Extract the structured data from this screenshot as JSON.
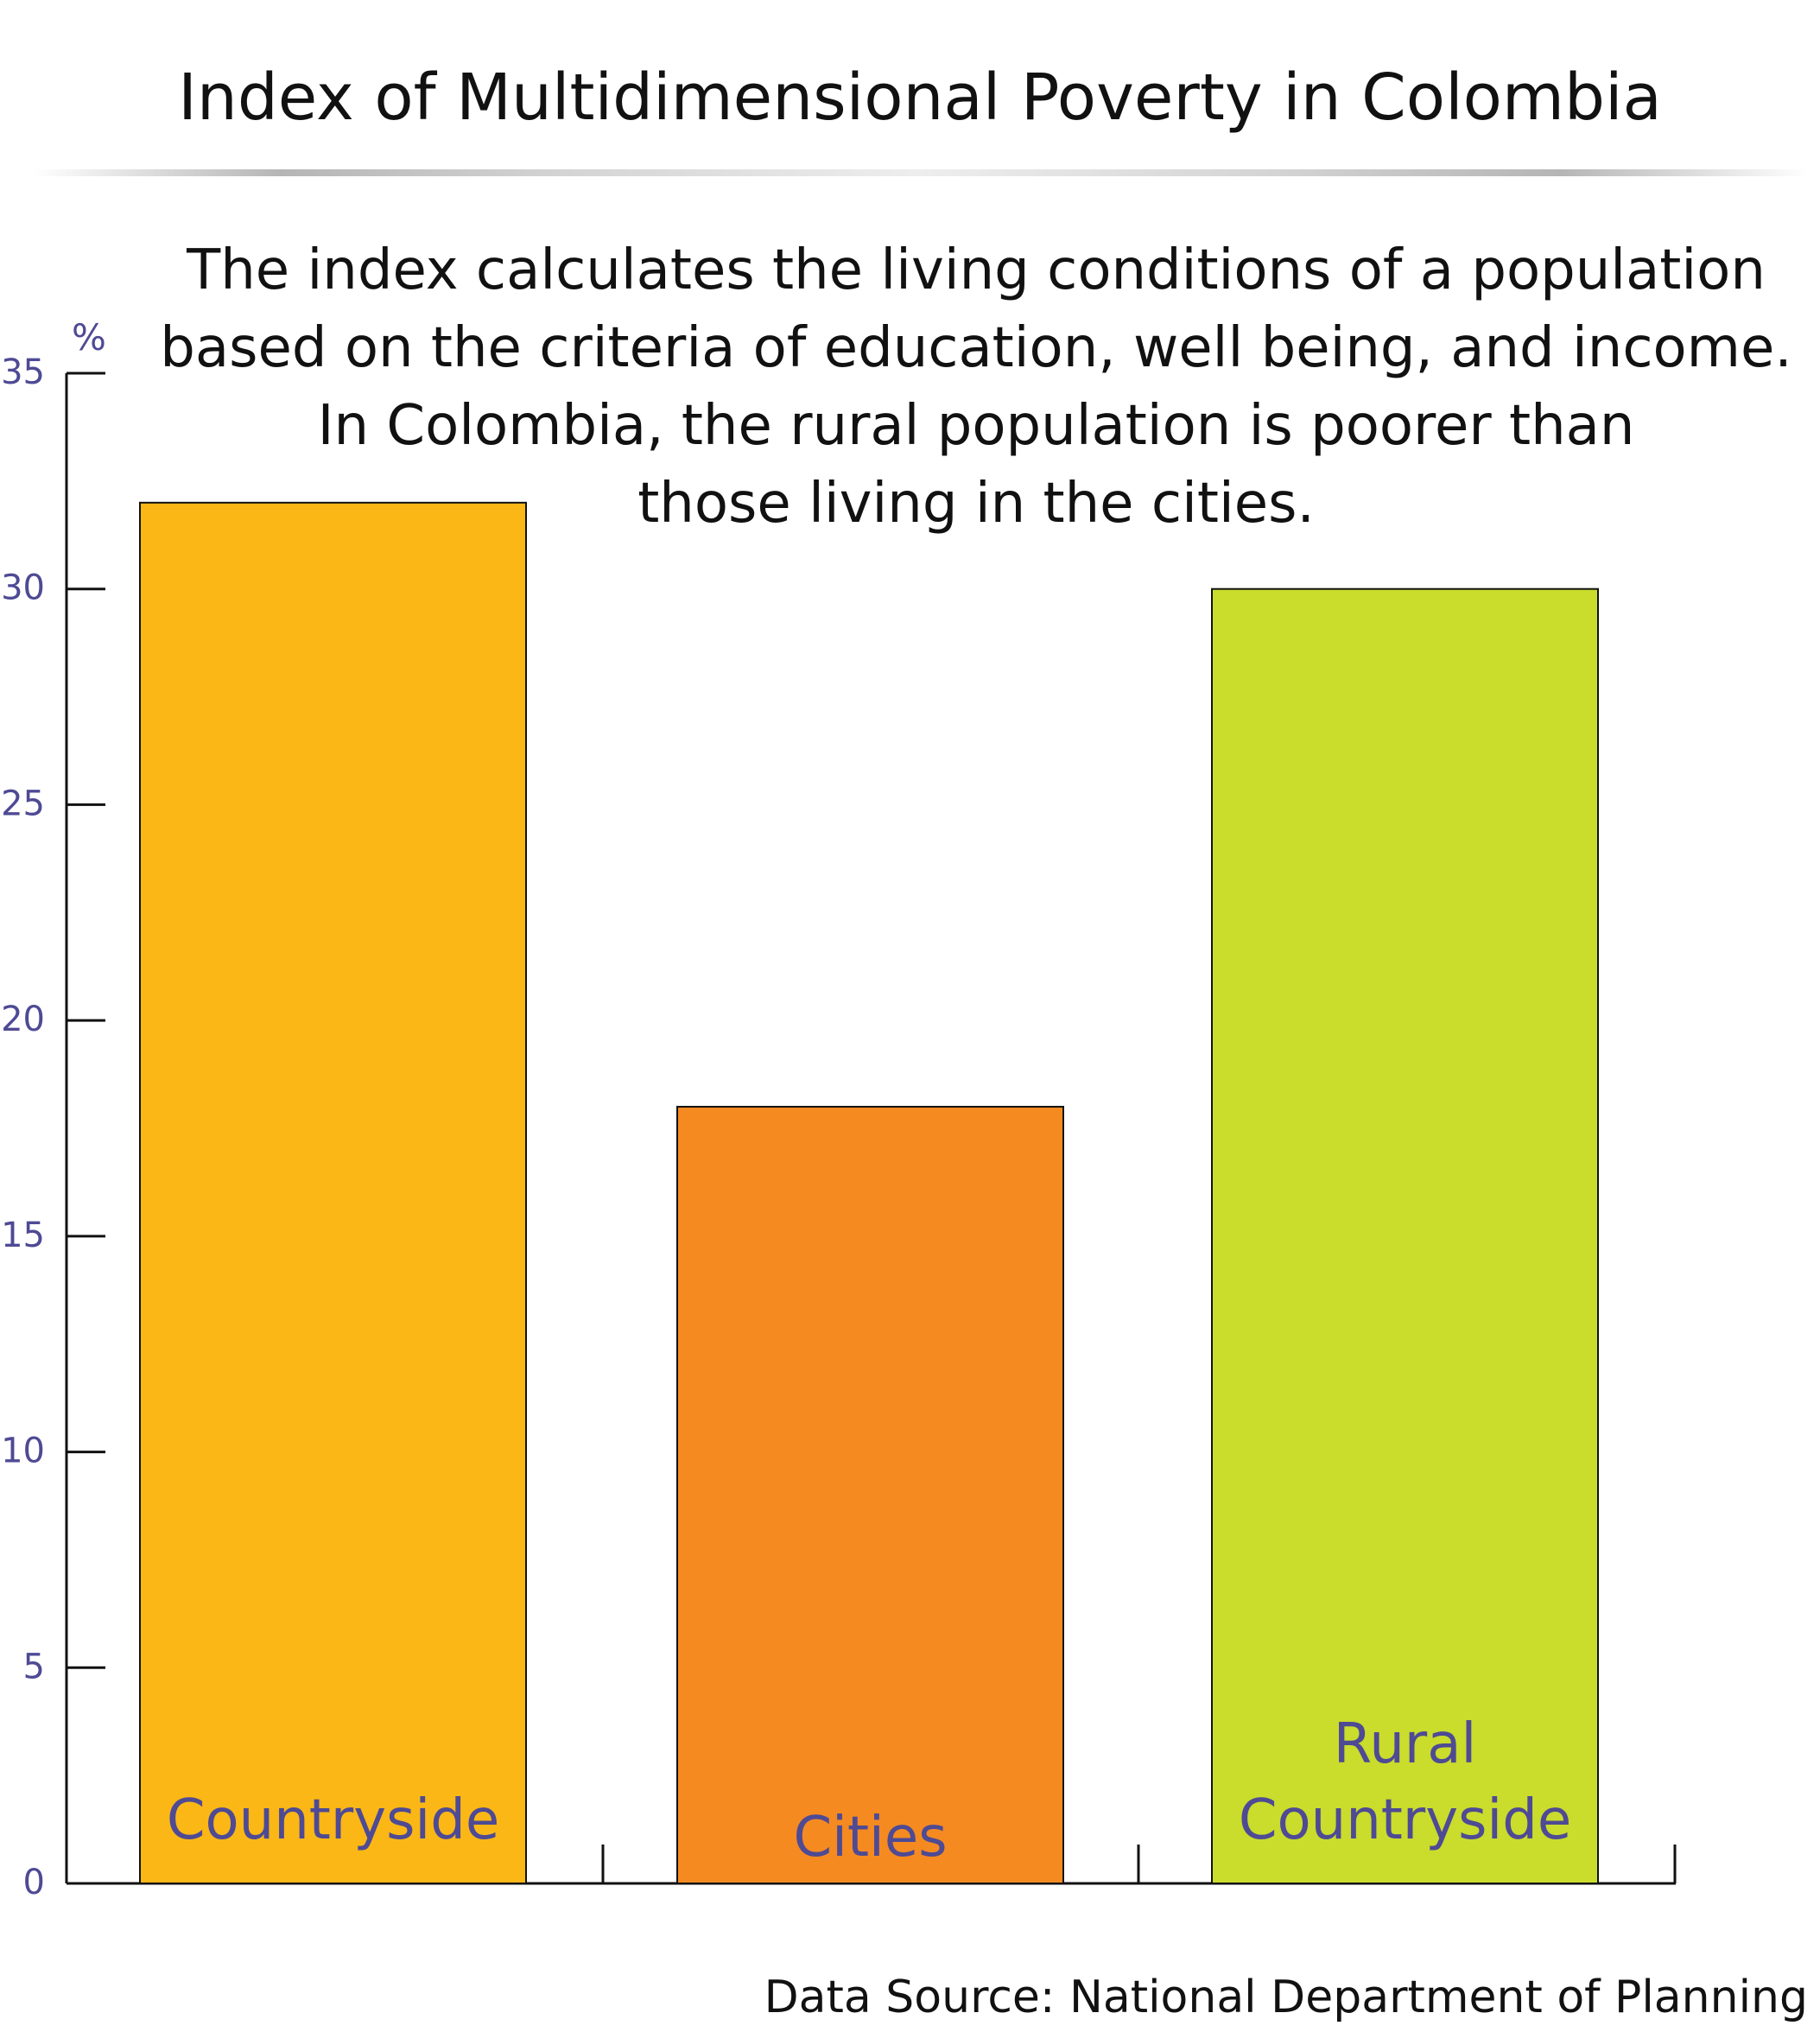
{
  "chart_data": {
    "type": "bar",
    "title": "Index of Multidimensional Poverty in Colombia",
    "subtitle_lines": [
      "The index calculates the living conditions of a population",
      "based on the criteria of education, well being, and income.",
      "In Colombia, the rural population is poorer than",
      "those living in the cities."
    ],
    "ylabel": "%",
    "ylim": [
      0,
      35
    ],
    "y_ticks": [
      "0",
      "5",
      "10",
      "15",
      "20",
      "25",
      "30",
      "35"
    ],
    "categories": [
      "Countryside",
      "Cities",
      "Rural Countryside"
    ],
    "category_label_lines": [
      [
        "Countryside"
      ],
      [
        "Cities"
      ],
      [
        "Rural",
        "Countryside"
      ]
    ],
    "values": [
      32,
      18,
      30
    ],
    "bar_colors": [
      "#FBB716",
      "#F58A21",
      "#CADC2C"
    ],
    "label_color": "#4E4A94",
    "tick_color": "#4E4A94",
    "grid": false,
    "legend": "none",
    "source": "Data Source: National Department of Planning"
  }
}
